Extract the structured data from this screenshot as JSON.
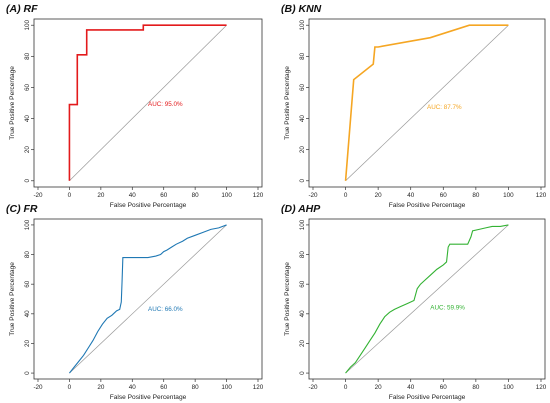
{
  "chart_data": [
    {
      "type": "line",
      "title": "(A) RF",
      "xlabel": "False Positive Percentage",
      "ylabel": "True Positive Percentage",
      "xlim": [
        -20,
        120
      ],
      "ylim": [
        0,
        100
      ],
      "xticks": [
        "-20",
        "0",
        "20",
        "40",
        "60",
        "80",
        "100",
        "120"
      ],
      "yticks": [
        "0",
        "20",
        "40",
        "60",
        "80",
        "100"
      ],
      "color": "#e31a1c",
      "auc_label": "AUC: 95.0%",
      "series": [
        {
          "x": [
            0,
            0,
            0,
            5,
            5,
            11,
            11,
            47,
            47,
            100
          ],
          "y": [
            0,
            2,
            49,
            49,
            81,
            81,
            97,
            97,
            100,
            100
          ]
        }
      ],
      "diagonal": true,
      "grid": false
    },
    {
      "type": "line",
      "title": "(B) KNN",
      "xlabel": "False Positive Percentage",
      "ylabel": "True Positive Percentage",
      "xlim": [
        -20,
        120
      ],
      "ylim": [
        0,
        100
      ],
      "xticks": [
        "-20",
        "0",
        "20",
        "40",
        "60",
        "80",
        "100",
        "120"
      ],
      "yticks": [
        "0",
        "20",
        "40",
        "60",
        "80",
        "100"
      ],
      "color": "#f5a623",
      "auc_label": "AUC: 87.7%",
      "series": [
        {
          "x": [
            0,
            5,
            17,
            18,
            20,
            52,
            76,
            100
          ],
          "y": [
            0,
            65,
            75,
            86,
            86,
            92,
            100,
            100
          ]
        }
      ],
      "diagonal": true,
      "grid": false
    },
    {
      "type": "line",
      "title": "(C) FR",
      "xlabel": "False Positive Percentage",
      "ylabel": "True Positive Percentage",
      "xlim": [
        -20,
        120
      ],
      "ylim": [
        0,
        100
      ],
      "xticks": [
        "-20",
        "0",
        "20",
        "40",
        "60",
        "80",
        "100",
        "120"
      ],
      "yticks": [
        "0",
        "20",
        "40",
        "60",
        "80",
        "100"
      ],
      "color": "#1f78b4",
      "auc_label": "AUC: 66.0%",
      "series": [
        {
          "x": [
            0,
            3,
            6,
            9,
            12,
            15,
            18,
            21,
            24,
            27,
            30,
            32,
            33,
            33.5,
            34,
            37,
            41,
            45,
            50,
            55,
            58,
            60,
            62,
            65,
            68,
            72,
            75,
            80,
            85,
            90,
            95,
            100
          ],
          "y": [
            0,
            4,
            8,
            12,
            17,
            22,
            28,
            33,
            37,
            39,
            42,
            43,
            48,
            62,
            78,
            78,
            78,
            78,
            78,
            79,
            80,
            82,
            83,
            85,
            87,
            89,
            91,
            93,
            95,
            97,
            98,
            100
          ]
        }
      ],
      "diagonal": true,
      "grid": false
    },
    {
      "type": "line",
      "title": "(D) AHP",
      "xlabel": "False Positive Percentage",
      "ylabel": "True Positive Percentage",
      "xlim": [
        -20,
        120
      ],
      "ylim": [
        0,
        100
      ],
      "xticks": [
        "-20",
        "0",
        "20",
        "40",
        "60",
        "80",
        "100",
        "120"
      ],
      "yticks": [
        "0",
        "20",
        "40",
        "60",
        "80",
        "100"
      ],
      "color": "#33b233",
      "auc_label": "AUC: 59.9%",
      "series": [
        {
          "x": [
            0,
            3,
            6,
            9,
            12,
            15,
            18,
            21,
            24,
            27,
            30,
            34,
            38,
            42,
            44,
            46,
            48,
            52,
            56,
            60,
            62,
            63,
            64,
            70,
            75,
            77,
            78,
            82,
            86,
            90,
            95,
            100
          ],
          "y": [
            0,
            4,
            7,
            12,
            17,
            22,
            27,
            33,
            38,
            41,
            43,
            45,
            47,
            49,
            57,
            60,
            62,
            66,
            70,
            73,
            75,
            85,
            87,
            87,
            87,
            92,
            96,
            97,
            98,
            99,
            99,
            100
          ]
        }
      ],
      "diagonal": true,
      "grid": false
    }
  ]
}
